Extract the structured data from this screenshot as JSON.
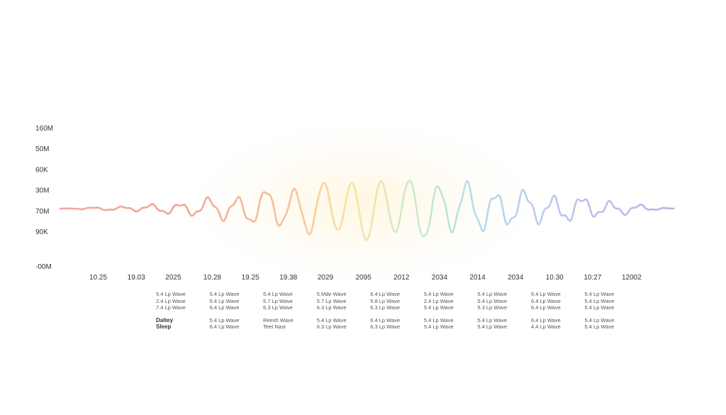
{
  "chart_data": {
    "type": "line",
    "title": "",
    "xlabel": "",
    "ylabel": "",
    "y_tick_labels": [
      "160M",
      "50M",
      "60K",
      "30M",
      "70M",
      "90K",
      "-00M"
    ],
    "x_tick_labels": [
      "10.25",
      "19.03",
      "2025",
      "10.28",
      "19.25",
      "19.38",
      "2029",
      "2095",
      "2012",
      "2034",
      "2014",
      "2034",
      "10.30",
      "10:27",
      "12002"
    ],
    "grid": false,
    "legend_position": "bottom",
    "series": [
      {
        "name": "",
        "color": "#ef9a8e",
        "x": [
          0,
          1,
          2,
          3
        ],
        "y": [
          0,
          0.3,
          0.8,
          0.5
        ]
      },
      {
        "name": "",
        "color": "#f4b896",
        "x": [
          3,
          4,
          5
        ],
        "y": [
          0.5,
          0.9,
          0.8
        ]
      },
      {
        "name": "",
        "color": "#f6d49a",
        "x": [
          5,
          6
        ],
        "y": [
          0.8,
          0.7
        ]
      },
      {
        "name": "",
        "color": "#f5eba5",
        "x": [
          6,
          7
        ],
        "y": [
          0.7,
          0.75
        ]
      },
      {
        "name": "",
        "color": "#c4e9c9",
        "x": [
          7,
          8
        ],
        "y": [
          0.75,
          0.9
        ]
      },
      {
        "name": "",
        "color": "#b9dfe9",
        "x": [
          8,
          9,
          10
        ],
        "y": [
          0.9,
          0.75,
          0.5
        ]
      },
      {
        "name": "",
        "color": "#b8c9ec",
        "x": [
          10,
          11
        ],
        "y": [
          0.5,
          0.45
        ]
      },
      {
        "name": "",
        "color": "#c1b2e6",
        "x": [
          11,
          12,
          13,
          14
        ],
        "y": [
          0.45,
          0.35,
          0.25,
          0.05
        ]
      }
    ]
  },
  "legend": {
    "rows": [
      [
        "5.4 Lp Wave",
        "5.4 Lp Wave",
        "5.4 Lp Wave",
        "5.Mde Wave",
        "6.4 Lp Wave",
        "5.4 Lp Wave",
        "5.4 Lp Wave",
        "6.4 Lp Wave",
        "5.4 Lp Wave"
      ],
      [
        "2.4 Lp Wave",
        "5.4 Lp Wave",
        "5.7 Lp Wave",
        "5.7 Lp Wave",
        "5.8 Lp Wave",
        "2.4 Lp Wave",
        "5.4 Lp Wave",
        "6.4 Lp Wave",
        "5.4 Lp Wave"
      ],
      [
        "7.4 Lp Wave",
        "6.4 Lp Wave",
        "6.3 Lp Wave",
        "6.3 Lp Wave",
        "6.3 Lp Wave",
        "5.4 Lp Wave",
        "5.3 Lp Wave",
        "6.4 Lp Wave",
        "5.4 Lp Wave"
      ]
    ],
    "rows2": [
      [
        "Daltey",
        "5.4 Lp Wave",
        "Reesh Wave",
        "5.4 Lp Wave",
        "6.4 Lp Wave",
        "5.4 Lp Wave",
        "5.4 Lp Wave",
        "6.4 Lp Wave",
        "5.4 Lp Wave"
      ],
      [
        "Sleep",
        "6.4 Lp Wave",
        "Teet Nast",
        "6.3 Lp Wave",
        "6.3 Lp Wave",
        "5.4 Lp Wave",
        "5.4 Lp Wave",
        "4.4 Lp Wave",
        "5.4 Lp Wave"
      ]
    ]
  }
}
